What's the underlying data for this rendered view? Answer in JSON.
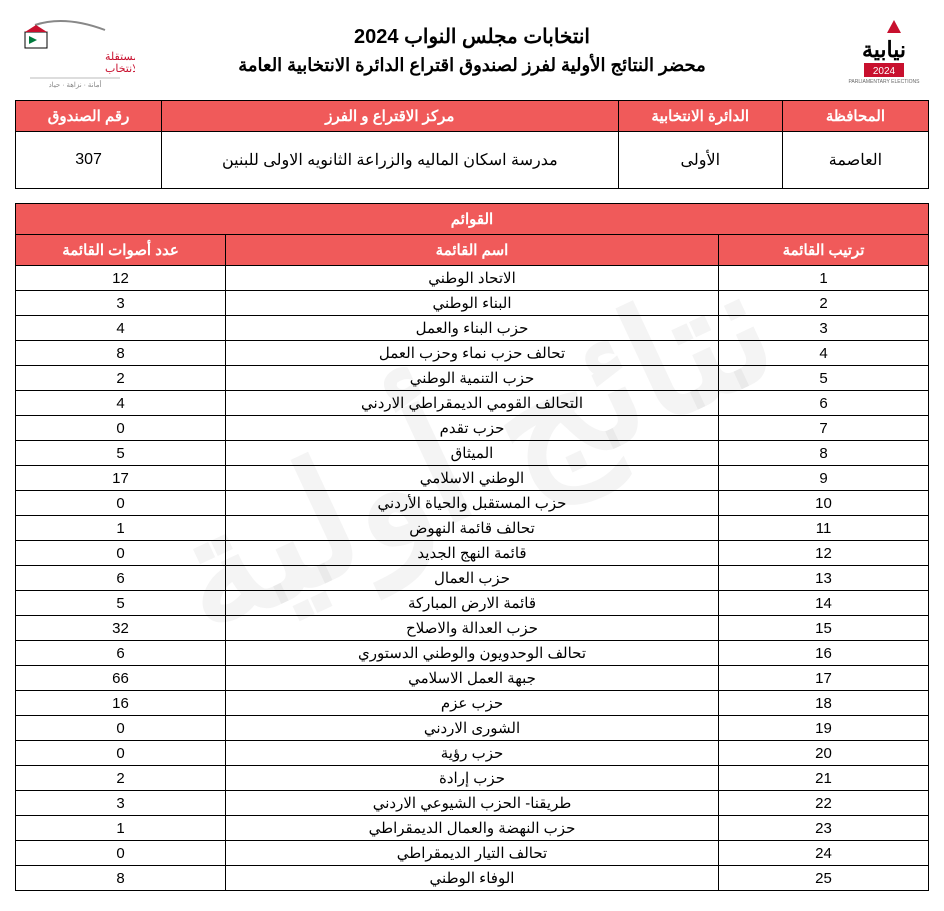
{
  "header": {
    "title_main": "انتخابات مجلس النواب 2024",
    "title_sub": "محضر النتائج الأولية لفرز لصندوق اقتراع الدائرة الانتخابية العامة"
  },
  "info_table": {
    "headers": {
      "governorate": "المحافظة",
      "district": "الدائرة الانتخابية",
      "center": "مركز الاقتراع و الفرز",
      "box": "رقم الصندوق"
    },
    "values": {
      "governorate": "العاصمة",
      "district": "الأولى",
      "center": "مدرسة اسكان الماليه والزراعة الثانويه الاولى للبنين",
      "box": "307"
    }
  },
  "results": {
    "section_title": "القوائم",
    "headers": {
      "rank": "ترتيب القائمة",
      "name": "اسم القائمة",
      "votes": "عدد أصوات القائمة"
    },
    "rows": [
      {
        "rank": "1",
        "name": "الاتحاد الوطني",
        "votes": "12"
      },
      {
        "rank": "2",
        "name": "البناء الوطني",
        "votes": "3"
      },
      {
        "rank": "3",
        "name": "حزب البناء والعمل",
        "votes": "4"
      },
      {
        "rank": "4",
        "name": "تحالف حزب نماء وحزب العمل",
        "votes": "8"
      },
      {
        "rank": "5",
        "name": "حزب التنمية الوطني",
        "votes": "2"
      },
      {
        "rank": "6",
        "name": "التحالف القومي الديمقراطي الاردني",
        "votes": "4"
      },
      {
        "rank": "7",
        "name": "حزب تقدم",
        "votes": "0"
      },
      {
        "rank": "8",
        "name": "الميثاق",
        "votes": "5"
      },
      {
        "rank": "9",
        "name": "الوطني الاسلامي",
        "votes": "17"
      },
      {
        "rank": "10",
        "name": "حزب المستقبل والحياة الأردني",
        "votes": "0"
      },
      {
        "rank": "11",
        "name": "تحالف قائمة النهوض",
        "votes": "1"
      },
      {
        "rank": "12",
        "name": "قائمة النهج الجديد",
        "votes": "0"
      },
      {
        "rank": "13",
        "name": "حزب العمال",
        "votes": "6"
      },
      {
        "rank": "14",
        "name": "قائمة الارض المباركة",
        "votes": "5"
      },
      {
        "rank": "15",
        "name": "حزب العدالة والاصلاح",
        "votes": "32"
      },
      {
        "rank": "16",
        "name": "تحالف الوحدويون والوطني الدستوري",
        "votes": "6"
      },
      {
        "rank": "17",
        "name": "جبهة العمل الاسلامي",
        "votes": "66"
      },
      {
        "rank": "18",
        "name": "حزب عزم",
        "votes": "16"
      },
      {
        "rank": "19",
        "name": "الشورى الاردني",
        "votes": "0"
      },
      {
        "rank": "20",
        "name": "حزب رؤية",
        "votes": "0"
      },
      {
        "rank": "21",
        "name": "حزب إرادة",
        "votes": "2"
      },
      {
        "rank": "22",
        "name": "طريقنا- الحزب الشيوعي الاردني",
        "votes": "3"
      },
      {
        "rank": "23",
        "name": "حزب النهضة والعمال الديمقراطي",
        "votes": "1"
      },
      {
        "rank": "24",
        "name": "تحالف التيار الديمقراطي",
        "votes": "0"
      },
      {
        "rank": "25",
        "name": "الوفاء الوطني",
        "votes": "8"
      }
    ]
  },
  "watermark_text": "نتائج أولية",
  "colors": {
    "header_bg": "#f05a5a",
    "header_text": "#ffffff",
    "border": "#000000",
    "page_bg": "#ffffff"
  },
  "logos": {
    "right_label": "نيابية 2024",
    "left_label": "الهيئة المستقلة للانتخاب"
  }
}
